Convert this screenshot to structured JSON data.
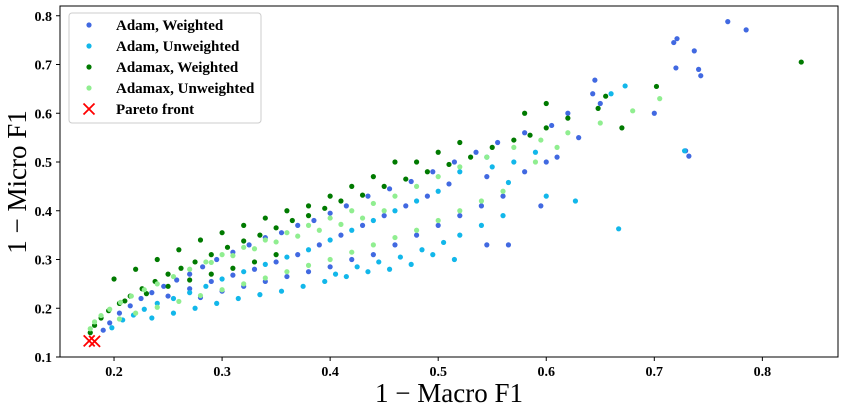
{
  "chart_data": {
    "type": "scatter",
    "title": "",
    "xlabel": "1 − Macro F1",
    "ylabel": "1 − Micro F1",
    "xlim": [
      0.15,
      0.87
    ],
    "ylim": [
      0.1,
      0.82
    ],
    "xticks": [
      "0.2",
      "0.3",
      "0.4",
      "0.5",
      "0.6",
      "0.7",
      "0.8"
    ],
    "yticks": [
      "0.1",
      "0.2",
      "0.3",
      "0.4",
      "0.5",
      "0.6",
      "0.7",
      "0.8"
    ],
    "grid": false,
    "legend_position": "top-left",
    "series": [
      {
        "name": "Adam, Weighted",
        "color": "#4169e1",
        "marker": "dot",
        "points": [
          [
            0.768,
            0.788
          ],
          [
            0.785,
            0.771
          ],
          [
            0.721,
            0.753
          ],
          [
            0.718,
            0.745
          ],
          [
            0.737,
            0.728
          ],
          [
            0.741,
            0.69
          ],
          [
            0.743,
            0.677
          ],
          [
            0.72,
            0.693
          ],
          [
            0.645,
            0.668
          ],
          [
            0.643,
            0.64
          ],
          [
            0.732,
            0.512
          ],
          [
            0.729,
            0.523
          ],
          [
            0.7,
            0.6
          ],
          [
            0.65,
            0.62
          ],
          [
            0.62,
            0.6
          ],
          [
            0.605,
            0.575
          ],
          [
            0.58,
            0.56
          ],
          [
            0.555,
            0.54
          ],
          [
            0.535,
            0.52
          ],
          [
            0.515,
            0.5
          ],
          [
            0.495,
            0.48
          ],
          [
            0.475,
            0.46
          ],
          [
            0.455,
            0.445
          ],
          [
            0.435,
            0.43
          ],
          [
            0.415,
            0.41
          ],
          [
            0.4,
            0.395
          ],
          [
            0.385,
            0.38
          ],
          [
            0.37,
            0.37
          ],
          [
            0.355,
            0.355
          ],
          [
            0.34,
            0.345
          ],
          [
            0.325,
            0.33
          ],
          [
            0.31,
            0.315
          ],
          [
            0.295,
            0.3
          ],
          [
            0.282,
            0.285
          ],
          [
            0.27,
            0.27
          ],
          [
            0.258,
            0.258
          ],
          [
            0.246,
            0.245
          ],
          [
            0.235,
            0.232
          ],
          [
            0.225,
            0.22
          ],
          [
            0.215,
            0.205
          ],
          [
            0.205,
            0.19
          ],
          [
            0.196,
            0.17
          ],
          [
            0.19,
            0.155
          ],
          [
            0.56,
            0.43
          ],
          [
            0.54,
            0.41
          ],
          [
            0.52,
            0.39
          ],
          [
            0.5,
            0.37
          ],
          [
            0.48,
            0.35
          ],
          [
            0.46,
            0.33
          ],
          [
            0.44,
            0.31
          ],
          [
            0.42,
            0.3
          ],
          [
            0.4,
            0.285
          ],
          [
            0.38,
            0.275
          ],
          [
            0.36,
            0.265
          ],
          [
            0.34,
            0.255
          ],
          [
            0.32,
            0.245
          ],
          [
            0.3,
            0.235
          ],
          [
            0.28,
            0.222
          ],
          [
            0.6,
            0.5
          ],
          [
            0.58,
            0.48
          ],
          [
            0.545,
            0.47
          ],
          [
            0.51,
            0.455
          ],
          [
            0.49,
            0.43
          ],
          [
            0.47,
            0.41
          ],
          [
            0.45,
            0.39
          ],
          [
            0.43,
            0.37
          ],
          [
            0.41,
            0.35
          ],
          [
            0.39,
            0.33
          ],
          [
            0.37,
            0.31
          ],
          [
            0.35,
            0.295
          ],
          [
            0.33,
            0.28
          ],
          [
            0.31,
            0.268
          ],
          [
            0.29,
            0.255
          ],
          [
            0.27,
            0.24
          ],
          [
            0.25,
            0.225
          ],
          [
            0.565,
            0.33
          ],
          [
            0.545,
            0.33
          ],
          [
            0.595,
            0.41
          ],
          [
            0.61,
            0.51
          ],
          [
            0.63,
            0.55
          ]
        ]
      },
      {
        "name": "Adam, Unweighted",
        "color": "#12b7ea",
        "marker": "dot",
        "points": [
          [
            0.673,
            0.656
          ],
          [
            0.66,
            0.64
          ],
          [
            0.728,
            0.523
          ],
          [
            0.667,
            0.363
          ],
          [
            0.627,
            0.42
          ],
          [
            0.6,
            0.43
          ],
          [
            0.565,
            0.458
          ],
          [
            0.545,
            0.51
          ],
          [
            0.52,
            0.48
          ],
          [
            0.5,
            0.44
          ],
          [
            0.48,
            0.42
          ],
          [
            0.46,
            0.4
          ],
          [
            0.44,
            0.38
          ],
          [
            0.42,
            0.36
          ],
          [
            0.4,
            0.34
          ],
          [
            0.38,
            0.32
          ],
          [
            0.36,
            0.305
          ],
          [
            0.34,
            0.29
          ],
          [
            0.32,
            0.275
          ],
          [
            0.3,
            0.26
          ],
          [
            0.285,
            0.245
          ],
          [
            0.27,
            0.232
          ],
          [
            0.255,
            0.22
          ],
          [
            0.24,
            0.21
          ],
          [
            0.228,
            0.198
          ],
          [
            0.218,
            0.186
          ],
          [
            0.208,
            0.176
          ],
          [
            0.198,
            0.16
          ],
          [
            0.515,
            0.3
          ],
          [
            0.495,
            0.31
          ],
          [
            0.475,
            0.29
          ],
          [
            0.455,
            0.28
          ],
          [
            0.435,
            0.275
          ],
          [
            0.415,
            0.265
          ],
          [
            0.395,
            0.255
          ],
          [
            0.375,
            0.245
          ],
          [
            0.355,
            0.235
          ],
          [
            0.335,
            0.228
          ],
          [
            0.315,
            0.22
          ],
          [
            0.295,
            0.21
          ],
          [
            0.275,
            0.2
          ],
          [
            0.255,
            0.19
          ],
          [
            0.235,
            0.18
          ],
          [
            0.56,
            0.39
          ],
          [
            0.54,
            0.37
          ],
          [
            0.52,
            0.35
          ],
          [
            0.505,
            0.335
          ],
          [
            0.485,
            0.32
          ],
          [
            0.465,
            0.305
          ],
          [
            0.445,
            0.295
          ],
          [
            0.425,
            0.285
          ],
          [
            0.405,
            0.27
          ],
          [
            0.59,
            0.52
          ],
          [
            0.57,
            0.5
          ],
          [
            0.55,
            0.49
          ]
        ]
      },
      {
        "name": "Adamax, Weighted",
        "color": "#007a00",
        "marker": "dot",
        "points": [
          [
            0.836,
            0.705
          ],
          [
            0.702,
            0.655
          ],
          [
            0.655,
            0.635
          ],
          [
            0.648,
            0.61
          ],
          [
            0.67,
            0.57
          ],
          [
            0.62,
            0.59
          ],
          [
            0.6,
            0.57
          ],
          [
            0.585,
            0.555
          ],
          [
            0.57,
            0.545
          ],
          [
            0.55,
            0.53
          ],
          [
            0.53,
            0.51
          ],
          [
            0.51,
            0.495
          ],
          [
            0.49,
            0.48
          ],
          [
            0.47,
            0.465
          ],
          [
            0.45,
            0.45
          ],
          [
            0.43,
            0.432
          ],
          [
            0.41,
            0.42
          ],
          [
            0.395,
            0.405
          ],
          [
            0.38,
            0.39
          ],
          [
            0.365,
            0.38
          ],
          [
            0.35,
            0.365
          ],
          [
            0.335,
            0.35
          ],
          [
            0.32,
            0.338
          ],
          [
            0.305,
            0.325
          ],
          [
            0.29,
            0.31
          ],
          [
            0.275,
            0.295
          ],
          [
            0.262,
            0.282
          ],
          [
            0.25,
            0.27
          ],
          [
            0.238,
            0.255
          ],
          [
            0.226,
            0.24
          ],
          [
            0.215,
            0.225
          ],
          [
            0.205,
            0.21
          ],
          [
            0.195,
            0.195
          ],
          [
            0.188,
            0.18
          ],
          [
            0.182,
            0.165
          ],
          [
            0.178,
            0.15
          ],
          [
            0.46,
            0.5
          ],
          [
            0.44,
            0.47
          ],
          [
            0.42,
            0.45
          ],
          [
            0.4,
            0.43
          ],
          [
            0.38,
            0.41
          ],
          [
            0.36,
            0.4
          ],
          [
            0.34,
            0.385
          ],
          [
            0.32,
            0.37
          ],
          [
            0.3,
            0.355
          ],
          [
            0.28,
            0.34
          ],
          [
            0.26,
            0.32
          ],
          [
            0.24,
            0.3
          ],
          [
            0.22,
            0.28
          ],
          [
            0.2,
            0.26
          ],
          [
            0.35,
            0.31
          ],
          [
            0.33,
            0.295
          ],
          [
            0.31,
            0.282
          ],
          [
            0.29,
            0.27
          ],
          [
            0.27,
            0.258
          ],
          [
            0.25,
            0.245
          ],
          [
            0.23,
            0.23
          ],
          [
            0.21,
            0.215
          ],
          [
            0.52,
            0.54
          ],
          [
            0.5,
            0.52
          ],
          [
            0.48,
            0.5
          ],
          [
            0.6,
            0.62
          ],
          [
            0.58,
            0.6
          ]
        ]
      },
      {
        "name": "Adamax, Unweighted",
        "color": "#90ee90",
        "marker": "dot",
        "points": [
          [
            0.705,
            0.63
          ],
          [
            0.68,
            0.605
          ],
          [
            0.65,
            0.58
          ],
          [
            0.62,
            0.56
          ],
          [
            0.595,
            0.545
          ],
          [
            0.57,
            0.53
          ],
          [
            0.545,
            0.51
          ],
          [
            0.52,
            0.49
          ],
          [
            0.5,
            0.47
          ],
          [
            0.48,
            0.45
          ],
          [
            0.46,
            0.43
          ],
          [
            0.44,
            0.415
          ],
          [
            0.42,
            0.4
          ],
          [
            0.4,
            0.385
          ],
          [
            0.38,
            0.37
          ],
          [
            0.36,
            0.355
          ],
          [
            0.34,
            0.34
          ],
          [
            0.32,
            0.325
          ],
          [
            0.3,
            0.31
          ],
          [
            0.285,
            0.295
          ],
          [
            0.27,
            0.28
          ],
          [
            0.255,
            0.265
          ],
          [
            0.24,
            0.25
          ],
          [
            0.228,
            0.238
          ],
          [
            0.216,
            0.225
          ],
          [
            0.206,
            0.212
          ],
          [
            0.196,
            0.198
          ],
          [
            0.188,
            0.185
          ],
          [
            0.182,
            0.172
          ],
          [
            0.178,
            0.158
          ],
          [
            0.5,
            0.38
          ],
          [
            0.48,
            0.36
          ],
          [
            0.46,
            0.345
          ],
          [
            0.44,
            0.33
          ],
          [
            0.42,
            0.315
          ],
          [
            0.4,
            0.3
          ],
          [
            0.38,
            0.288
          ],
          [
            0.36,
            0.275
          ],
          [
            0.34,
            0.262
          ],
          [
            0.32,
            0.25
          ],
          [
            0.3,
            0.238
          ],
          [
            0.28,
            0.226
          ],
          [
            0.26,
            0.214
          ],
          [
            0.24,
            0.202
          ],
          [
            0.22,
            0.19
          ],
          [
            0.205,
            0.178
          ],
          [
            0.56,
            0.44
          ],
          [
            0.54,
            0.42
          ],
          [
            0.52,
            0.4
          ],
          [
            0.59,
            0.5
          ],
          [
            0.61,
            0.53
          ],
          [
            0.45,
            0.4
          ],
          [
            0.43,
            0.385
          ],
          [
            0.41,
            0.372
          ],
          [
            0.39,
            0.36
          ],
          [
            0.37,
            0.348
          ],
          [
            0.35,
            0.336
          ],
          [
            0.33,
            0.322
          ],
          [
            0.31,
            0.308
          ],
          [
            0.29,
            0.294
          ]
        ]
      },
      {
        "name": "Pareto front",
        "color": "#ff0000",
        "marker": "x",
        "points": [
          [
            0.177,
            0.133
          ],
          [
            0.182,
            0.132
          ]
        ]
      }
    ]
  }
}
